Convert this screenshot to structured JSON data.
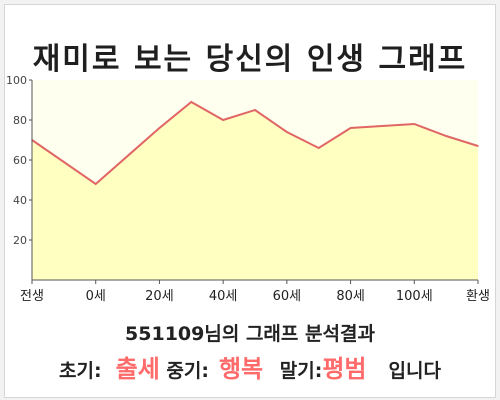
{
  "title": "재미로 보는 당신의 인생 그래프",
  "summary": {
    "id": "551109",
    "text": "님의 그래프 분석결과"
  },
  "result": {
    "early_label": "초기:",
    "early_value": "출세",
    "mid_label": "중기:",
    "mid_value": "행복",
    "late_label": "말기:",
    "late_value": "평범",
    "ending": "입니다"
  },
  "colors": {
    "line": "#e06666",
    "fill": "#ffffc2",
    "plot_bg": "#fffff0",
    "highlight": "#ff6a6a"
  },
  "chart_data": {
    "type": "area",
    "title": "재미로 보는 당신의 인생 그래프",
    "xlabel": "",
    "ylabel": "",
    "ylim": [
      0,
      100
    ],
    "yticks": [
      20,
      40,
      60,
      80,
      100
    ],
    "xlim": [
      -20,
      120
    ],
    "xticks": [
      {
        "value": -20,
        "label": "전생"
      },
      {
        "value": 0,
        "label": "0세"
      },
      {
        "value": 20,
        "label": "20세"
      },
      {
        "value": 40,
        "label": "40세"
      },
      {
        "value": 60,
        "label": "60세"
      },
      {
        "value": 80,
        "label": "80세"
      },
      {
        "value": 100,
        "label": "100세"
      },
      {
        "value": 120,
        "label": "환생"
      }
    ],
    "grid": false,
    "series": [
      {
        "x": [
          -20,
          0,
          20,
          30,
          40,
          50,
          60,
          70,
          80,
          90,
          100,
          110,
          120
        ],
        "values": [
          70,
          48,
          76,
          89,
          80,
          85,
          74,
          66,
          76,
          77,
          78,
          72,
          67
        ]
      }
    ]
  }
}
